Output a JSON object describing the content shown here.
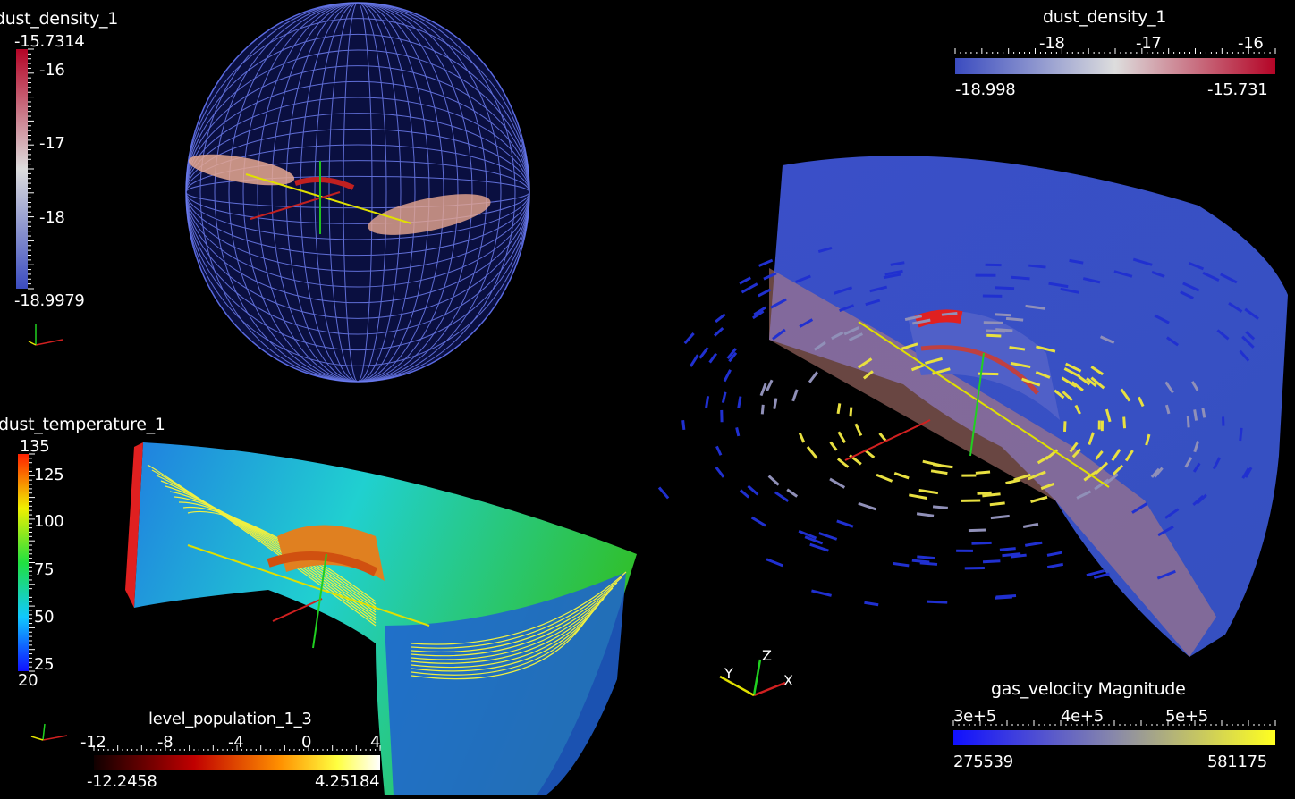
{
  "colors": {
    "background": "#000000",
    "coolwarm_low": "#3b4cc0",
    "coolwarm_mid": "#dddddd",
    "coolwarm_high": "#b40426",
    "velocity_low": "#1010e0",
    "velocity_high": "#ffff20"
  },
  "view_topleft": {
    "title": "dust_density_1",
    "max_label": "-15.7314",
    "min_label": "-18.9979",
    "ticks": [
      "-16",
      "-17",
      "-18"
    ],
    "axes_icon": "orientation-axes-icon"
  },
  "view_topright": {
    "title": "dust_density_1",
    "ticks": [
      "-18",
      "-17",
      "-16"
    ],
    "min_label": "-18.998",
    "max_label": "-15.731"
  },
  "view_bottomleft": {
    "temp_title": "dust_temperature_1",
    "temp_max": "135",
    "temp_min": "20",
    "temp_ticks": [
      "125",
      "100",
      "75",
      "50",
      "25"
    ],
    "level_title": "level_population_1_3",
    "level_ticks": [
      "-12",
      "-8",
      "-4",
      "0",
      "4"
    ],
    "level_min": "-12.2458",
    "level_max": "4.25184",
    "axes_icon": "orientation-axes-icon"
  },
  "view_bottomright": {
    "title": "gas_velocity Magnitude",
    "ticks": [
      "3e+5",
      "4e+5",
      "5e+5"
    ],
    "min_label": "275539",
    "max_label": "581175",
    "axis_x": "X",
    "axis_y": "Y",
    "axis_z": "Z"
  }
}
